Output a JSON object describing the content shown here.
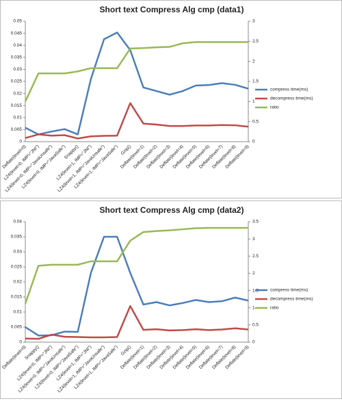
{
  "chart_data": [
    {
      "type": "line",
      "title": "Short text Compress Alg cmp (data1)",
      "categories": [
        "Deflate(level=0)",
        "LZ4(level=0, IMP=\"JNI\")",
        "LZ4(level=0, IMP=\"JavaUnsafe\")",
        "LZ4(level=0, IMP=\"JavaSafe\")",
        "Snappy()",
        "LZ4(level=1, IMP=\"JNI\")",
        "LZ4(level=1, IMP=\"JavaUnsafe\")",
        "LZ4(level=1, IMP=\"JavaSafe\")",
        "Gzip()",
        "Deflate(level=1)",
        "Deflate(level=2)",
        "Deflate(level=3)",
        "Deflate(level=4)",
        "Deflate(level=5)",
        "Deflate(level=6)",
        "Deflate(level=7)",
        "Deflate(level=8)",
        "Deflate(level=9)"
      ],
      "series": [
        {
          "name": "compress time(ms)",
          "color": "#4a7ebb",
          "values": [
            0.0058,
            0.003,
            0.0042,
            0.0052,
            0.003,
            0.026,
            0.0425,
            0.0453,
            0.038,
            0.0225,
            0.021,
            0.0195,
            0.021,
            0.0233,
            0.0235,
            0.0243,
            0.0236,
            0.022
          ]
        },
        {
          "name": "decompress time(ms)",
          "color": "#be4b48",
          "values": [
            0.0015,
            0.003,
            0.0025,
            0.0027,
            0.0013,
            0.0022,
            0.0024,
            0.0025,
            0.016,
            0.0075,
            0.0071,
            0.0065,
            0.0065,
            0.0067,
            0.0067,
            0.0069,
            0.0068,
            0.0062
          ]
        },
        {
          "name": "ratio",
          "color": "#98b954",
          "axis": "y2",
          "values": [
            1.0,
            1.7,
            1.7,
            1.7,
            1.75,
            1.83,
            1.83,
            1.83,
            2.32,
            2.33,
            2.35,
            2.36,
            2.45,
            2.48,
            2.48,
            2.48,
            2.48,
            2.48
          ]
        }
      ],
      "ylim": [
        0,
        0.05
      ],
      "yticks": [
        0,
        0.005,
        0.01,
        0.015,
        0.02,
        0.025,
        0.03,
        0.035,
        0.04,
        0.045,
        0.05
      ],
      "y2lim": [
        0,
        3
      ],
      "y2ticks": [
        0,
        0.5,
        1,
        1.5,
        2,
        2.5,
        3
      ],
      "grid": false,
      "legend": "right"
    },
    {
      "type": "line",
      "title": "Short text Compress Alg cmp (data2)",
      "categories": [
        "Deflate(level=0)",
        "Snappy()",
        "LZ4(level=0, IMP=\"JNI\")",
        "LZ4(level=0, IMP=\"JavaUnsafe\")",
        "LZ4(level=0, IMP=\"JavaSafe\")",
        "LZ4(level=1, IMP=\"JNI\")",
        "LZ4(level=1, IMP=\"JavaUnsafe\")",
        "LZ4(level=1, IMP=\"JavaSafe\")",
        "Gzip()",
        "Deflate(level=1)",
        "Deflate(level=2)",
        "Deflate(level=3)",
        "Deflate(level=4)",
        "Deflate(level=5)",
        "Deflate(level=6)",
        "Deflate(level=7)",
        "Deflate(level=8)",
        "Deflate(level=9)"
      ],
      "series": [
        {
          "name": "compress time(ms)",
          "color": "#4a7ebb",
          "values": [
            0.005,
            0.0022,
            0.0023,
            0.0035,
            0.0034,
            0.023,
            0.035,
            0.035,
            0.023,
            0.0125,
            0.0133,
            0.0122,
            0.013,
            0.014,
            0.0133,
            0.0136,
            0.0148,
            0.0138
          ]
        },
        {
          "name": "decompress time(ms)",
          "color": "#be4b48",
          "values": [
            0.0012,
            0.0011,
            0.0025,
            0.0018,
            0.0017,
            0.0016,
            0.0016,
            0.0017,
            0.012,
            0.0041,
            0.0043,
            0.0039,
            0.004,
            0.0043,
            0.004,
            0.0042,
            0.0046,
            0.0042
          ]
        },
        {
          "name": "ratio",
          "color": "#98b954",
          "axis": "y2",
          "values": [
            1.12,
            2.22,
            2.25,
            2.25,
            2.25,
            2.35,
            2.35,
            2.35,
            2.95,
            3.2,
            3.23,
            3.25,
            3.28,
            3.31,
            3.32,
            3.32,
            3.32,
            3.32
          ]
        }
      ],
      "ylim": [
        0,
        0.04
      ],
      "yticks": [
        0,
        0.005,
        0.01,
        0.015,
        0.02,
        0.025,
        0.03,
        0.035,
        0.04
      ],
      "y2lim": [
        0,
        3.5
      ],
      "y2ticks": [
        0,
        0.5,
        1,
        1.5,
        2,
        2.5,
        3,
        3.5
      ],
      "grid": false,
      "legend": "right"
    }
  ]
}
